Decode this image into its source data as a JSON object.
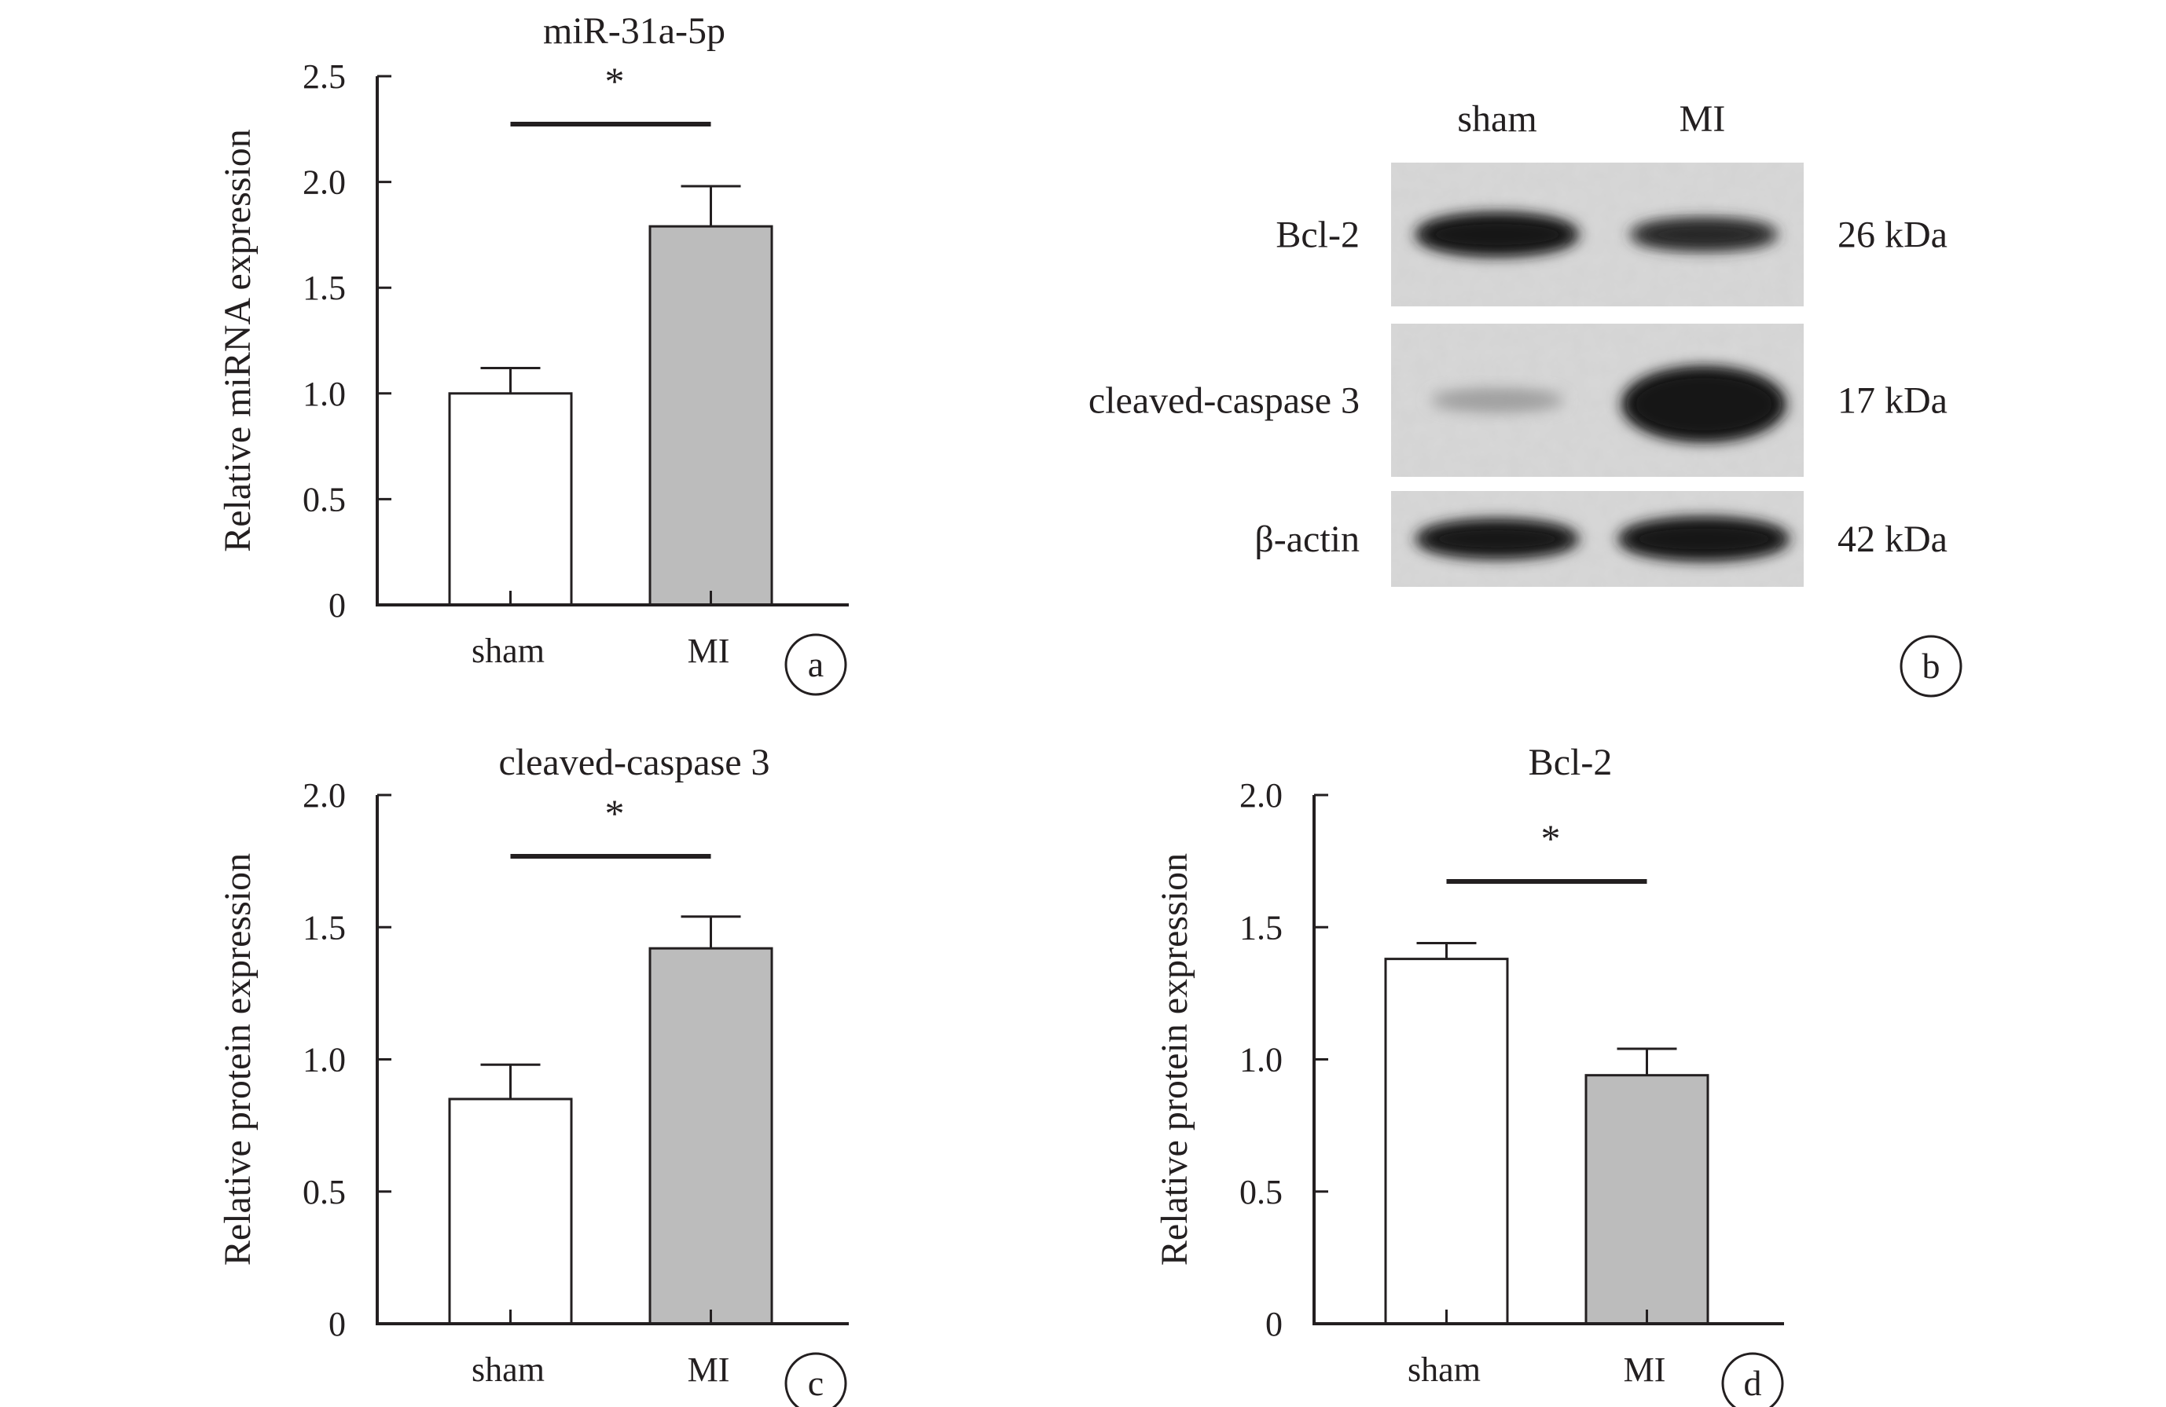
{
  "chart_data": [
    {
      "panel": "a",
      "type": "bar",
      "title": "miR-31a-5p",
      "ylabel": "Relative miRNA expression",
      "xlabel": "",
      "categories": [
        "sham",
        "MI"
      ],
      "values": [
        1.0,
        1.79
      ],
      "errors": [
        0.12,
        0.19
      ],
      "bar_colors": [
        "#ffffff",
        "#bcbcbc"
      ],
      "ylim": [
        0,
        2.5
      ],
      "yticks": [
        0,
        0.5,
        1.0,
        1.5,
        2.0,
        2.5
      ],
      "ytick_labels": [
        "0",
        "0.5",
        "1.0",
        "1.5",
        "2.0",
        "2.5"
      ],
      "significance": "*",
      "grid": false
    },
    {
      "panel": "c",
      "type": "bar",
      "title": "cleaved-caspase 3",
      "ylabel": "Relative protein expression",
      "xlabel": "",
      "categories": [
        "sham",
        "MI"
      ],
      "values": [
        0.85,
        1.42
      ],
      "errors": [
        0.13,
        0.12
      ],
      "bar_colors": [
        "#ffffff",
        "#bcbcbc"
      ],
      "ylim": [
        0,
        2.0
      ],
      "yticks": [
        0,
        0.5,
        1.0,
        1.5,
        2.0
      ],
      "ytick_labels": [
        "0",
        "0.5",
        "1.0",
        "1.5",
        "2.0"
      ],
      "significance": "*",
      "grid": false
    },
    {
      "panel": "d",
      "type": "bar",
      "title": "Bcl-2",
      "ylabel": "Relative protein expression",
      "xlabel": "",
      "categories": [
        "sham",
        "MI"
      ],
      "values": [
        1.38,
        0.94
      ],
      "errors": [
        0.06,
        0.1
      ],
      "bar_colors": [
        "#ffffff",
        "#bcbcbc"
      ],
      "ylim": [
        0,
        2.0
      ],
      "yticks": [
        0,
        0.5,
        1.0,
        1.5,
        2.0
      ],
      "ytick_labels": [
        "0",
        "0.5",
        "1.0",
        "1.5",
        "2.0"
      ],
      "significance": "*",
      "grid": false
    }
  ],
  "western_blot": {
    "panel": "b",
    "lanes": [
      "sham",
      "MI"
    ],
    "rows": [
      {
        "protein": "Bcl-2",
        "size": "26 kDa",
        "band_intensity": [
          0.95,
          0.85
        ]
      },
      {
        "protein": "cleaved-caspase 3",
        "size": "17 kDa",
        "band_intensity": [
          0.25,
          1.0
        ]
      },
      {
        "protein": "β-actin",
        "size": "42 kDa",
        "band_intensity": [
          0.92,
          0.96
        ]
      }
    ]
  }
}
